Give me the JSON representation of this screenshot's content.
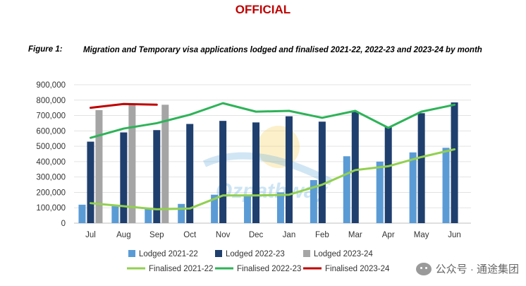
{
  "header": {
    "classification": "OFFICIAL"
  },
  "figure": {
    "label": "Figure 1:",
    "title": "Migration and Temporary visa applications lodged and finalised 2021-22, 2022-23 and 2023-24 by month"
  },
  "watermark": {
    "text": "Ozpathway"
  },
  "brand": {
    "icon": "wechat-icon",
    "text": "公众号 · 通途集团"
  },
  "chart_data": {
    "type": "bar",
    "categories": [
      "Jul",
      "Aug",
      "Sep",
      "Oct",
      "Nov",
      "Dec",
      "Jan",
      "Feb",
      "Mar",
      "Apr",
      "May",
      "Jun"
    ],
    "ylim": [
      0,
      900000
    ],
    "yticks": [
      "0",
      "100,000",
      "200,000",
      "300,000",
      "400,000",
      "500,000",
      "600,000",
      "700,000",
      "800,000",
      "900,000"
    ],
    "grid": true,
    "legend_placement": "bottom",
    "bar_series": [
      {
        "name": "Lodged 2021-22",
        "color": "#5b9bd5",
        "values": [
          120000,
          110000,
          100000,
          125000,
          185000,
          180000,
          200000,
          280000,
          435000,
          400000,
          460000,
          490000
        ]
      },
      {
        "name": "Lodged 2022-23",
        "color": "#1f3f6e",
        "values": [
          530000,
          590000,
          605000,
          645000,
          665000,
          655000,
          695000,
          660000,
          725000,
          625000,
          715000,
          785000
        ]
      },
      {
        "name": "Lodged 2023-24",
        "color": "#a5a5a5",
        "values": [
          735000,
          775000,
          770000,
          null,
          null,
          null,
          null,
          null,
          null,
          null,
          null,
          null
        ]
      }
    ],
    "line_series": [
      {
        "name": "Finalised 2021-22",
        "color": "#92d050",
        "values": [
          130000,
          110000,
          90000,
          95000,
          180000,
          180000,
          185000,
          250000,
          345000,
          370000,
          430000,
          480000
        ]
      },
      {
        "name": "Finalised 2022-23",
        "color": "#2eb358",
        "values": [
          555000,
          615000,
          650000,
          705000,
          780000,
          725000,
          730000,
          685000,
          730000,
          620000,
          725000,
          770000
        ]
      },
      {
        "name": "Finalised 2023-24",
        "color": "#c00000",
        "values": [
          750000,
          775000,
          770000,
          null,
          null,
          null,
          null,
          null,
          null,
          null,
          null,
          null
        ]
      }
    ]
  }
}
